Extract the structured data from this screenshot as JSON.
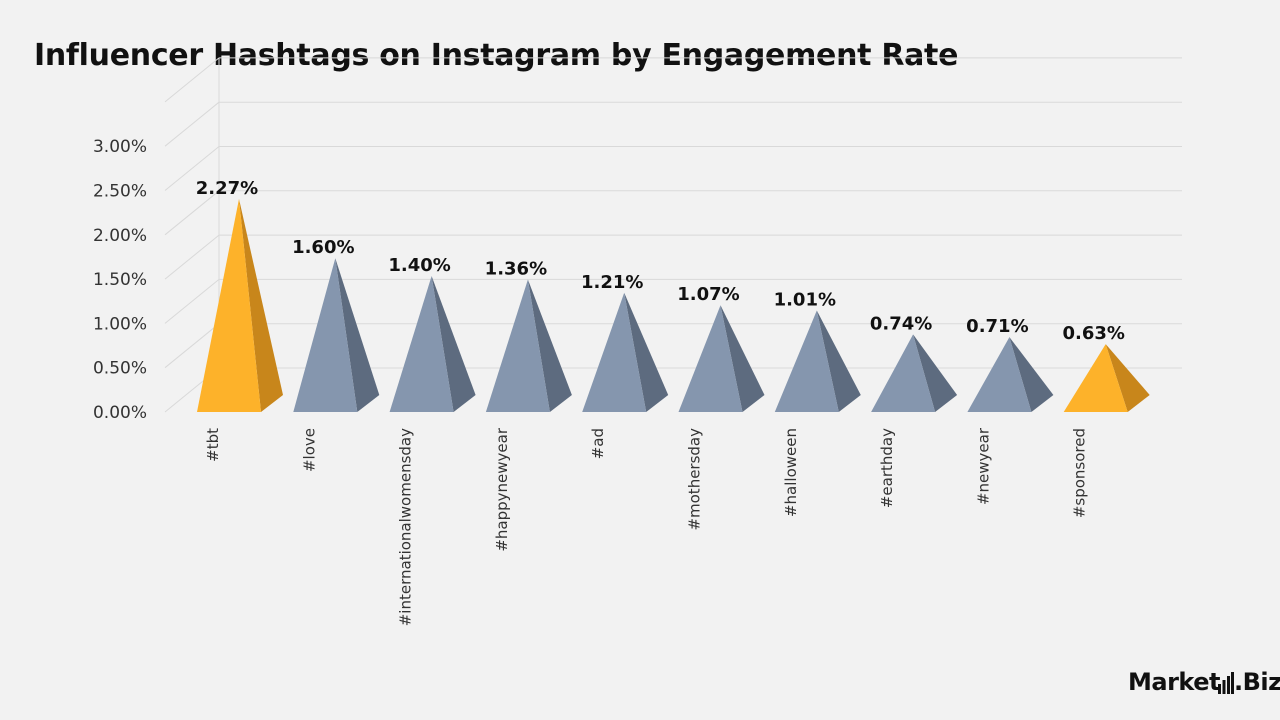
{
  "title": "Influencer Hashtags on Instagram by Engagement Rate",
  "brand": {
    "part1": "Market",
    "dot": ".",
    "part2": "Biz"
  },
  "colors": {
    "background": "#f2f2f2",
    "highlight_front": "#fdb22a",
    "highlight_side": "#c8861b",
    "normal_front": "#8596ae",
    "normal_side": "#5d6b7f",
    "grid": "#d9d9d9"
  },
  "chart_data": {
    "type": "bar",
    "style": "3d-pyramid",
    "title": "Influencer Hashtags on Instagram by Engagement Rate",
    "categories": [
      "#tbt",
      "#love",
      "#internationalwomensday",
      "#happynewyear",
      "#ad",
      "#mothersday",
      "#halloween",
      "#earthday",
      "#newyear",
      "#sponsored"
    ],
    "values": [
      2.27,
      1.6,
      1.4,
      1.36,
      1.21,
      1.07,
      1.01,
      0.74,
      0.71,
      0.63
    ],
    "value_labels": [
      "2.27%",
      "1.60%",
      "1.40%",
      "1.36%",
      "1.21%",
      "1.07%",
      "1.01%",
      "0.74%",
      "0.71%",
      "0.63%"
    ],
    "highlighted": [
      true,
      false,
      false,
      false,
      false,
      false,
      false,
      false,
      false,
      true
    ],
    "y_ticks": [
      "0.00%",
      "0.50%",
      "1.00%",
      "1.50%",
      "2.00%",
      "2.50%",
      "3.00%"
    ],
    "y_tick_values": [
      0,
      0.5,
      1.0,
      1.5,
      2.0,
      2.5,
      3.0
    ],
    "ylim": [
      0,
      3.0
    ],
    "grid": true,
    "legend": "none",
    "xlabel": "",
    "ylabel": ""
  }
}
